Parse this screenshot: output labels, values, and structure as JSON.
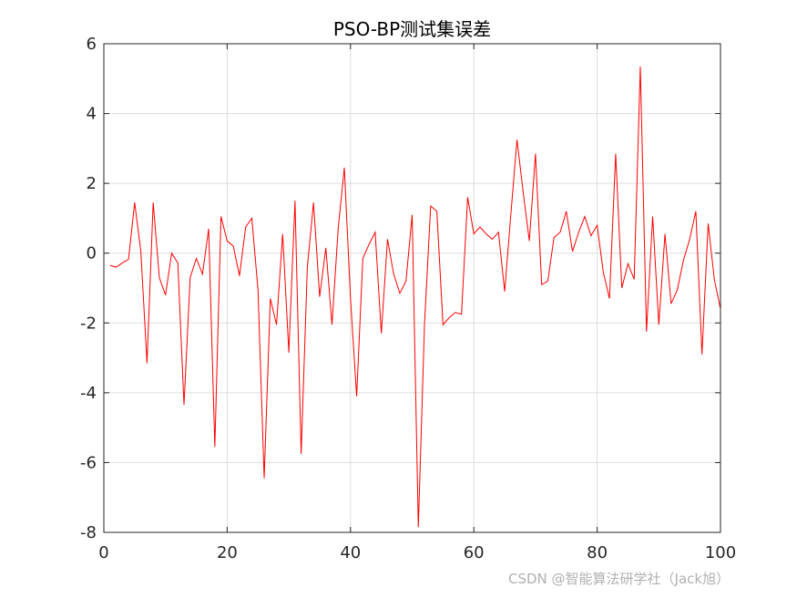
{
  "chart_data": {
    "type": "line",
    "title": "PSO-BP测试集误差",
    "xlabel": "",
    "ylabel": "",
    "xlim": [
      0,
      100
    ],
    "ylim": [
      -8,
      6
    ],
    "xticks": [
      0,
      20,
      40,
      60,
      80,
      100
    ],
    "yticks": [
      -8,
      -6,
      -4,
      -2,
      0,
      2,
      4,
      6
    ],
    "grid": true,
    "series": [
      {
        "color": "#ff0000",
        "x": [
          1,
          2,
          3,
          4,
          5,
          6,
          7,
          8,
          9,
          10,
          11,
          12,
          13,
          14,
          15,
          16,
          17,
          18,
          19,
          20,
          21,
          22,
          23,
          24,
          25,
          26,
          27,
          28,
          29,
          30,
          31,
          32,
          33,
          34,
          35,
          36,
          37,
          38,
          39,
          40,
          41,
          42,
          43,
          44,
          45,
          46,
          47,
          48,
          49,
          50,
          51,
          52,
          53,
          54,
          55,
          56,
          57,
          58,
          59,
          60,
          61,
          62,
          63,
          64,
          65,
          66,
          67,
          68,
          69,
          70,
          71,
          72,
          73,
          74,
          75,
          76,
          77,
          78,
          79,
          80,
          81,
          82,
          83,
          84,
          85,
          86,
          87,
          88,
          89,
          90,
          91,
          92,
          93,
          94,
          95,
          96,
          97,
          98,
          99,
          100
        ],
        "values": [
          -0.35,
          -0.4,
          -0.28,
          -0.18,
          1.45,
          0.05,
          -3.15,
          1.45,
          -0.7,
          -1.2,
          0.0,
          -0.28,
          -4.35,
          -0.7,
          -0.15,
          -0.6,
          0.7,
          -5.55,
          1.05,
          0.35,
          0.2,
          -0.65,
          0.75,
          1.0,
          -1.05,
          -6.45,
          -1.3,
          -2.05,
          0.55,
          -2.85,
          1.5,
          -5.75,
          -0.4,
          1.45,
          -1.25,
          0.15,
          -2.05,
          0.7,
          2.45,
          -1.3,
          -4.1,
          -0.15,
          0.25,
          0.6,
          -2.3,
          0.4,
          -0.6,
          -1.15,
          -0.8,
          1.1,
          -7.85,
          -2.05,
          1.35,
          1.2,
          -2.05,
          -1.85,
          -1.7,
          -1.75,
          1.6,
          0.55,
          0.75,
          0.55,
          0.4,
          0.6,
          -1.1,
          1.1,
          3.25,
          1.75,
          0.35,
          2.85,
          -0.9,
          -0.8,
          0.45,
          0.6,
          1.2,
          0.05,
          0.6,
          1.05,
          0.5,
          0.8,
          -0.55,
          -1.3,
          2.85,
          -1.0,
          -0.3,
          -0.75,
          5.35,
          -2.25,
          1.05,
          -2.05,
          0.55,
          -1.45,
          -1.05,
          -0.2,
          0.4,
          1.2,
          -2.9,
          0.85,
          -0.75,
          -1.6
        ]
      }
    ]
  },
  "watermark": "CSDN @智能算法研学社（Jack旭）",
  "colors": {
    "line": "#ff0000",
    "grid": "#dddddd",
    "axis": "#262626",
    "background": "#ffffff"
  }
}
